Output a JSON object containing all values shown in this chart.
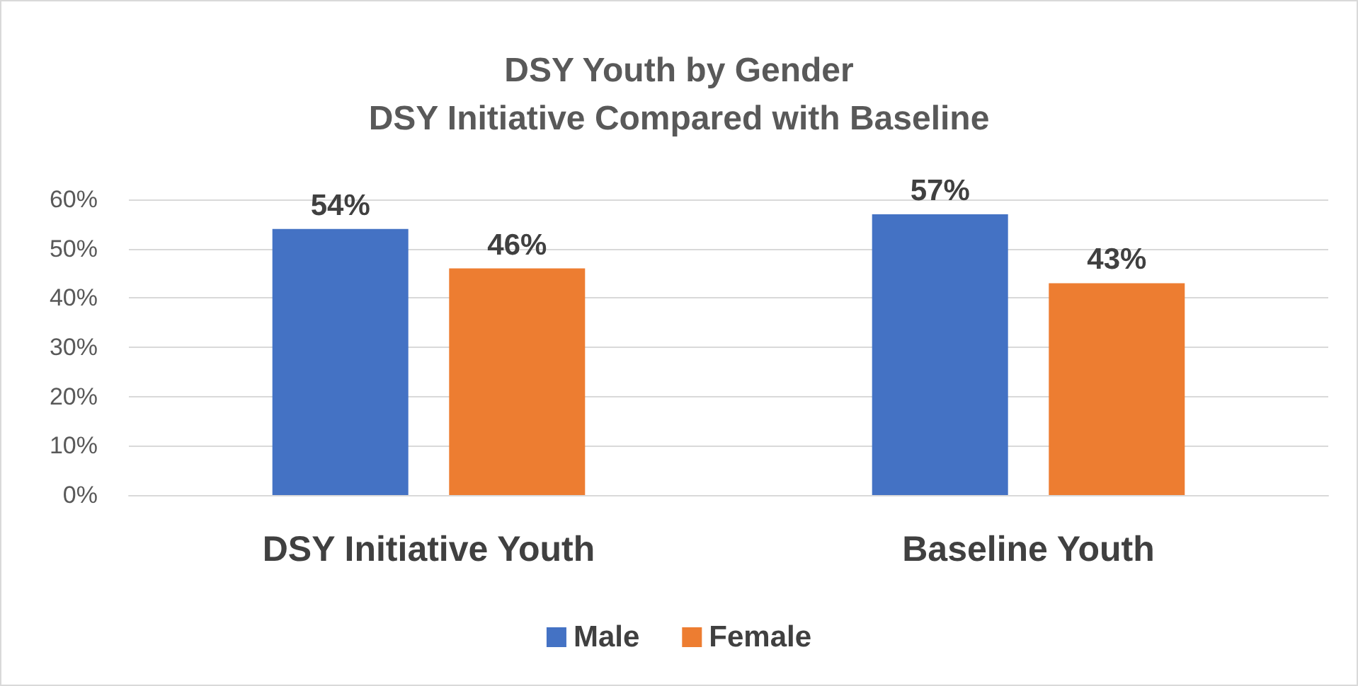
{
  "chart_data": {
    "type": "bar",
    "title": "DSY Youth by Gender",
    "subtitle": "DSY Initiative Compared with Baseline",
    "categories": [
      "DSY Initiative Youth",
      "Baseline Youth"
    ],
    "series": [
      {
        "name": "Male",
        "color": "#4472c4",
        "values": [
          54,
          57
        ],
        "value_labels": [
          "54%",
          "57%"
        ]
      },
      {
        "name": "Female",
        "color": "#ed7d31",
        "values": [
          46,
          43
        ],
        "value_labels": [
          "46%",
          "43%"
        ]
      }
    ],
    "ylim": [
      0,
      60
    ],
    "yticks": [
      {
        "value": 0,
        "label": "0%"
      },
      {
        "value": 10,
        "label": "10%"
      },
      {
        "value": 20,
        "label": "20%"
      },
      {
        "value": 30,
        "label": "30%"
      },
      {
        "value": 40,
        "label": "40%"
      },
      {
        "value": 50,
        "label": "50%"
      },
      {
        "value": 60,
        "label": "60%"
      }
    ],
    "grid": "y",
    "legend": "bottom"
  }
}
